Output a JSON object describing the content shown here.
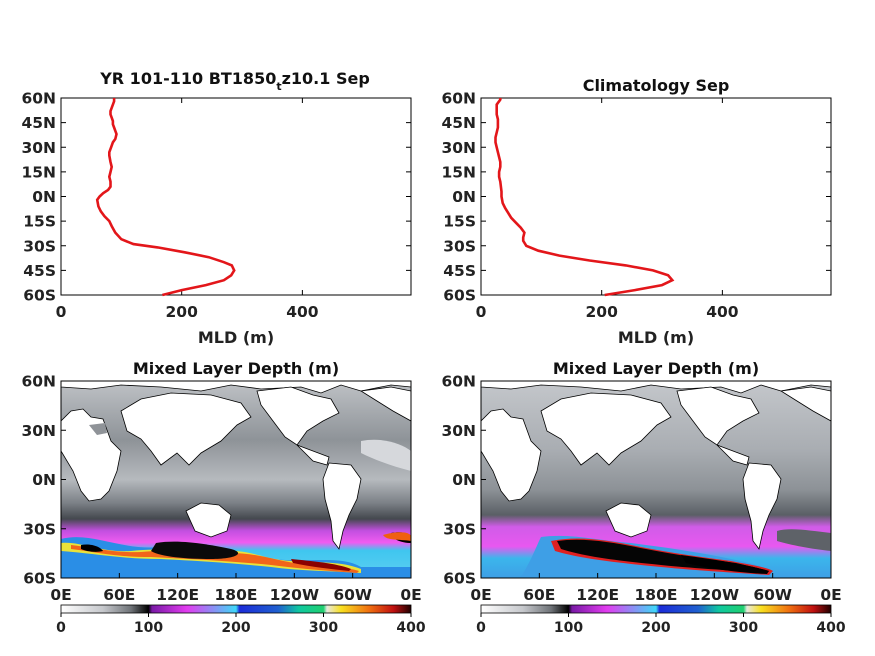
{
  "colors": {
    "profile_line": "#e3161a",
    "land": "#ffffff",
    "frame": "#000000"
  },
  "chart_data": [
    {
      "type": "line",
      "title": "YR 101-110 BT1850",
      "title_sub": "t",
      "title_tail": "z10.1 Sep",
      "xlabel": "MLD (m)",
      "ylabel": "",
      "xlim": [
        0,
        580
      ],
      "ylim": [
        -60,
        60
      ],
      "xticks": [
        "0",
        "200",
        "400"
      ],
      "yticks": [
        "60N",
        "45N",
        "30N",
        "15N",
        "0N",
        "15S",
        "30S",
        "45S",
        "60S"
      ],
      "series": [
        {
          "x": [
            168,
            200,
            240,
            270,
            282,
            287,
            283,
            270,
            245,
            205,
            160,
            120,
            100,
            90,
            84,
            80,
            72,
            66,
            62,
            60,
            64,
            70,
            78,
            82,
            82,
            80,
            82,
            84,
            82,
            80,
            80,
            83,
            86,
            90,
            92,
            90,
            88,
            86,
            86,
            84,
            82,
            82,
            84,
            86,
            88,
            88,
            88,
            88,
            88,
            88
          ],
          "y": [
            -60,
            -57,
            -54,
            -51,
            -48,
            -45,
            -42,
            -40,
            -37,
            -34,
            -31,
            -29,
            -26,
            -22,
            -18,
            -15,
            -12,
            -9,
            -6,
            -2,
            0,
            2,
            4,
            6,
            9,
            12,
            15,
            18,
            21,
            25,
            27,
            30,
            33,
            35,
            38,
            40,
            42,
            44,
            46,
            48,
            50,
            52,
            54,
            56,
            58,
            59,
            60,
            60,
            60,
            60
          ]
        }
      ]
    },
    {
      "type": "line",
      "title": "Climatology Sep",
      "xlabel": "MLD (m)",
      "ylabel": "",
      "xlim": [
        0,
        580
      ],
      "ylim": [
        -60,
        60
      ],
      "xticks": [
        "0",
        "200",
        "400"
      ],
      "yticks": [
        "60N",
        "45N",
        "30N",
        "15N",
        "0N",
        "15S",
        "30S",
        "45S",
        "60S"
      ],
      "series": [
        {
          "x": [
            205,
            255,
            300,
            317,
            310,
            285,
            240,
            180,
            130,
            95,
            75,
            70,
            70,
            72,
            66,
            58,
            50,
            45,
            40,
            36,
            34,
            34,
            33,
            32,
            30,
            30,
            32,
            32,
            30,
            28,
            26,
            24,
            24,
            26,
            28,
            28,
            28,
            26,
            26,
            26,
            26,
            28,
            30,
            32,
            32,
            32,
            32
          ],
          "y": [
            -60,
            -57,
            -54,
            -51,
            -48,
            -45,
            -42,
            -39,
            -36,
            -33,
            -30,
            -27,
            -25,
            -22,
            -19,
            -16,
            -13,
            -10,
            -7,
            -4,
            0,
            3,
            6,
            9,
            12,
            15,
            18,
            21,
            24,
            27,
            30,
            33,
            36,
            39,
            42,
            45,
            47,
            50,
            52,
            54,
            56,
            57,
            58,
            59,
            60,
            60,
            60
          ]
        }
      ]
    },
    {
      "type": "heatmap",
      "title": "Mixed Layer Depth (m)",
      "xticks": [
        "0E",
        "60E",
        "120E",
        "180E",
        "120W",
        "60W",
        "0E"
      ],
      "yticks": [
        "60N",
        "30N",
        "0N",
        "30S",
        "60S"
      ],
      "colorbar": {
        "ticks": [
          "0",
          "100",
          "200",
          "300",
          "400"
        ],
        "range": [
          0,
          400
        ]
      }
    },
    {
      "type": "heatmap",
      "title": "Mixed Layer Depth (m)",
      "xticks": [
        "0E",
        "60E",
        "120E",
        "180E",
        "120W",
        "60W",
        "0E"
      ],
      "yticks": [
        "60N",
        "30N",
        "0N",
        "30S",
        "60S"
      ],
      "colorbar": {
        "ticks": [
          "0",
          "100",
          "200",
          "300",
          "400"
        ],
        "range": [
          0,
          400
        ]
      }
    }
  ]
}
